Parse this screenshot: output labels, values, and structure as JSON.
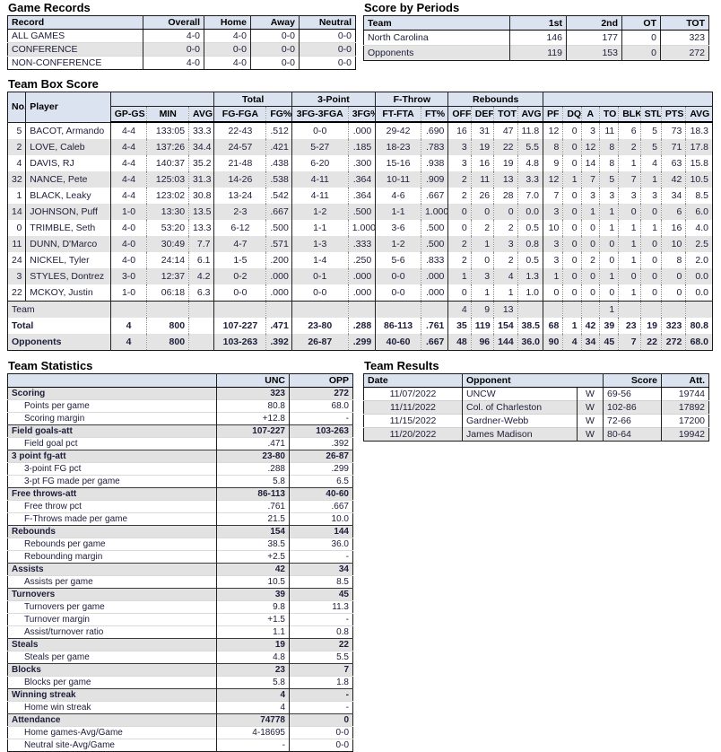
{
  "colors": {
    "header_bg": "#dbe3f0",
    "alt_row_bg": "#e4e4e4",
    "category_row_bg": "#e2e2e2",
    "border_dark": "#1a1a1a",
    "text": "#1d1d3a"
  },
  "game_records": {
    "title": "Game Records",
    "columns": [
      "Record",
      "Overall",
      "Home",
      "Away",
      "Neutral"
    ],
    "rows": [
      [
        "ALL GAMES",
        "4-0",
        "4-0",
        "0-0",
        "0-0"
      ],
      [
        "CONFERENCE",
        "0-0",
        "0-0",
        "0-0",
        "0-0"
      ],
      [
        "NON-CONFERENCE",
        "4-0",
        "4-0",
        "0-0",
        "0-0"
      ]
    ]
  },
  "score_by_periods": {
    "title": "Score by Periods",
    "columns": [
      "Team",
      "1st",
      "2nd",
      "OT",
      "TOT"
    ],
    "rows": [
      [
        "North Carolina",
        "146",
        "177",
        "0",
        "323"
      ],
      [
        "Opponents",
        "119",
        "153",
        "0",
        "272"
      ]
    ]
  },
  "box_score": {
    "title": "Team Box Score",
    "groups": [
      "Total",
      "3-Point",
      "F-Throw",
      "Rebounds"
    ],
    "columns": [
      "No.",
      "Player",
      "GP-GS",
      "MIN",
      "AVG",
      "FG-FGA",
      "FG%",
      "3FG-3FGA",
      "3FG%",
      "FT-FTA",
      "FT%",
      "OFF",
      "DEF",
      "TOT",
      "AVG",
      "PF",
      "DQ",
      "A",
      "TO",
      "BLK",
      "STL",
      "PTS",
      "AVG"
    ],
    "players": [
      [
        "5",
        "BACOT, Armando",
        "4-4",
        "133:05",
        "33.3",
        "22-43",
        ".512",
        "0-0",
        ".000",
        "29-42",
        ".690",
        "16",
        "31",
        "47",
        "11.8",
        "12",
        "0",
        "3",
        "11",
        "6",
        "5",
        "73",
        "18.3"
      ],
      [
        "2",
        "LOVE, Caleb",
        "4-4",
        "137:26",
        "34.4",
        "24-57",
        ".421",
        "5-27",
        ".185",
        "18-23",
        ".783",
        "3",
        "19",
        "22",
        "5.5",
        "8",
        "0",
        "12",
        "8",
        "2",
        "5",
        "71",
        "17.8"
      ],
      [
        "4",
        "DAVIS, RJ",
        "4-4",
        "140:37",
        "35.2",
        "21-48",
        ".438",
        "6-20",
        ".300",
        "15-16",
        ".938",
        "3",
        "16",
        "19",
        "4.8",
        "9",
        "0",
        "14",
        "8",
        "1",
        "4",
        "63",
        "15.8"
      ],
      [
        "32",
        "NANCE, Pete",
        "4-4",
        "125:03",
        "31.3",
        "14-26",
        ".538",
        "4-11",
        ".364",
        "10-11",
        ".909",
        "2",
        "11",
        "13",
        "3.3",
        "12",
        "1",
        "7",
        "5",
        "7",
        "1",
        "42",
        "10.5"
      ],
      [
        "1",
        "BLACK, Leaky",
        "4-4",
        "123:02",
        "30.8",
        "13-24",
        ".542",
        "4-11",
        ".364",
        "4-6",
        ".667",
        "2",
        "26",
        "28",
        "7.0",
        "7",
        "0",
        "3",
        "3",
        "3",
        "3",
        "34",
        "8.5"
      ],
      [
        "14",
        "JOHNSON, Puff",
        "1-0",
        "13:30",
        "13.5",
        "2-3",
        ".667",
        "1-2",
        ".500",
        "1-1",
        "1.000",
        "0",
        "0",
        "0",
        "0.0",
        "3",
        "0",
        "1",
        "1",
        "0",
        "0",
        "6",
        "6.0"
      ],
      [
        "0",
        "TRIMBLE, Seth",
        "4-0",
        "53:20",
        "13.3",
        "6-12",
        ".500",
        "1-1",
        "1.000",
        "3-6",
        ".500",
        "0",
        "2",
        "2",
        "0.5",
        "10",
        "0",
        "0",
        "1",
        "1",
        "1",
        "16",
        "4.0"
      ],
      [
        "11",
        "DUNN, D'Marco",
        "4-0",
        "30:49",
        "7.7",
        "4-7",
        ".571",
        "1-3",
        ".333",
        "1-2",
        ".500",
        "2",
        "1",
        "3",
        "0.8",
        "3",
        "0",
        "0",
        "0",
        "1",
        "0",
        "10",
        "2.5"
      ],
      [
        "24",
        "NICKEL, Tyler",
        "4-0",
        "24:14",
        "6.1",
        "1-5",
        ".200",
        "1-4",
        ".250",
        "5-6",
        ".833",
        "2",
        "0",
        "2",
        "0.5",
        "3",
        "0",
        "2",
        "0",
        "1",
        "0",
        "8",
        "2.0"
      ],
      [
        "3",
        "STYLES, Dontrez",
        "3-0",
        "12:37",
        "4.2",
        "0-2",
        ".000",
        "0-1",
        ".000",
        "0-0",
        ".000",
        "1",
        "3",
        "4",
        "1.3",
        "1",
        "0",
        "0",
        "1",
        "0",
        "0",
        "0",
        "0.0"
      ],
      [
        "22",
        "MCKOY, Justin",
        "1-0",
        "06:18",
        "6.3",
        "0-0",
        ".000",
        "0-0",
        ".000",
        "0-0",
        ".000",
        "0",
        "1",
        "1",
        "1.0",
        "0",
        "0",
        "0",
        "0",
        "1",
        "0",
        "0",
        "0.0"
      ]
    ],
    "team_row": [
      "Team",
      "",
      "",
      "",
      "",
      "",
      "",
      "",
      "",
      "",
      "4",
      "9",
      "13",
      "",
      "",
      "",
      "",
      "1",
      "",
      "",
      "",
      ""
    ],
    "total_row": [
      "Total",
      "4",
      "800",
      "",
      "107-227",
      ".471",
      "23-80",
      ".288",
      "86-113",
      ".761",
      "35",
      "119",
      "154",
      "38.5",
      "68",
      "1",
      "42",
      "39",
      "23",
      "19",
      "323",
      "80.8"
    ],
    "opponents_row": [
      "Opponents",
      "4",
      "800",
      "",
      "103-263",
      ".392",
      "26-87",
      ".299",
      "40-60",
      ".667",
      "48",
      "96",
      "144",
      "36.0",
      "90",
      "4",
      "34",
      "45",
      "7",
      "22",
      "272",
      "68.0"
    ]
  },
  "team_statistics": {
    "title": "Team Statistics",
    "columns": [
      "",
      "UNC",
      "OPP"
    ],
    "rows": [
      {
        "label": "Scoring",
        "bold": true,
        "unc": "323",
        "opp": "272"
      },
      {
        "label": "Points per game",
        "bold": false,
        "unc": "80.8",
        "opp": "68.0"
      },
      {
        "label": "Scoring margin",
        "bold": false,
        "unc": "+12.8",
        "opp": "-"
      },
      {
        "label": "Field goals-att",
        "bold": true,
        "unc": "107-227",
        "opp": "103-263"
      },
      {
        "label": "Field goal pct",
        "bold": false,
        "unc": ".471",
        "opp": ".392"
      },
      {
        "label": "3 point fg-att",
        "bold": true,
        "unc": "23-80",
        "opp": "26-87"
      },
      {
        "label": "3-point FG pct",
        "bold": false,
        "unc": ".288",
        "opp": ".299"
      },
      {
        "label": "3-pt FG made per game",
        "bold": false,
        "unc": "5.8",
        "opp": "6.5"
      },
      {
        "label": "Free throws-att",
        "bold": true,
        "unc": "86-113",
        "opp": "40-60"
      },
      {
        "label": "Free throw pct",
        "bold": false,
        "unc": ".761",
        "opp": ".667"
      },
      {
        "label": "F-Throws made per game",
        "bold": false,
        "unc": "21.5",
        "opp": "10.0"
      },
      {
        "label": "Rebounds",
        "bold": true,
        "unc": "154",
        "opp": "144"
      },
      {
        "label": "Rebounds per game",
        "bold": false,
        "unc": "38.5",
        "opp": "36.0"
      },
      {
        "label": "Rebounding margin",
        "bold": false,
        "unc": "+2.5",
        "opp": "-"
      },
      {
        "label": "Assists",
        "bold": true,
        "unc": "42",
        "opp": "34"
      },
      {
        "label": "Assists per game",
        "bold": false,
        "unc": "10.5",
        "opp": "8.5"
      },
      {
        "label": "Turnovers",
        "bold": true,
        "unc": "39",
        "opp": "45"
      },
      {
        "label": "Turnovers per game",
        "bold": false,
        "unc": "9.8",
        "opp": "11.3"
      },
      {
        "label": "Turnover margin",
        "bold": false,
        "unc": "+1.5",
        "opp": "-"
      },
      {
        "label": "Assist/turnover ratio",
        "bold": false,
        "unc": "1.1",
        "opp": "0.8"
      },
      {
        "label": "Steals",
        "bold": true,
        "unc": "19",
        "opp": "22"
      },
      {
        "label": "Steals per game",
        "bold": false,
        "unc": "4.8",
        "opp": "5.5"
      },
      {
        "label": "Blocks",
        "bold": true,
        "unc": "23",
        "opp": "7"
      },
      {
        "label": "Blocks per game",
        "bold": false,
        "unc": "5.8",
        "opp": "1.8"
      },
      {
        "label": "Winning streak",
        "bold": true,
        "unc": "4",
        "opp": "-"
      },
      {
        "label": "Home win streak",
        "bold": false,
        "unc": "4",
        "opp": "-"
      },
      {
        "label": "Attendance",
        "bold": true,
        "unc": "74778",
        "opp": "0"
      },
      {
        "label": "Home games-Avg/Game",
        "bold": false,
        "unc": "4-18695",
        "opp": "0-0"
      },
      {
        "label": "Neutral site-Avg/Game",
        "bold": false,
        "unc": "-",
        "opp": "0-0"
      }
    ]
  },
  "team_results": {
    "title": "Team Results",
    "columns": [
      "Date",
      "Opponent",
      "Score",
      "Att."
    ],
    "rows": [
      [
        "11/07/2022",
        "UNCW",
        "W",
        "69-56",
        "19744"
      ],
      [
        "11/11/2022",
        "Col. of Charleston",
        "W",
        "102-86",
        "17892"
      ],
      [
        "11/15/2022",
        "Gardner-Webb",
        "W",
        "72-66",
        "17200"
      ],
      [
        "11/20/2022",
        "James Madison",
        "W",
        "80-64",
        "19942"
      ]
    ]
  }
}
